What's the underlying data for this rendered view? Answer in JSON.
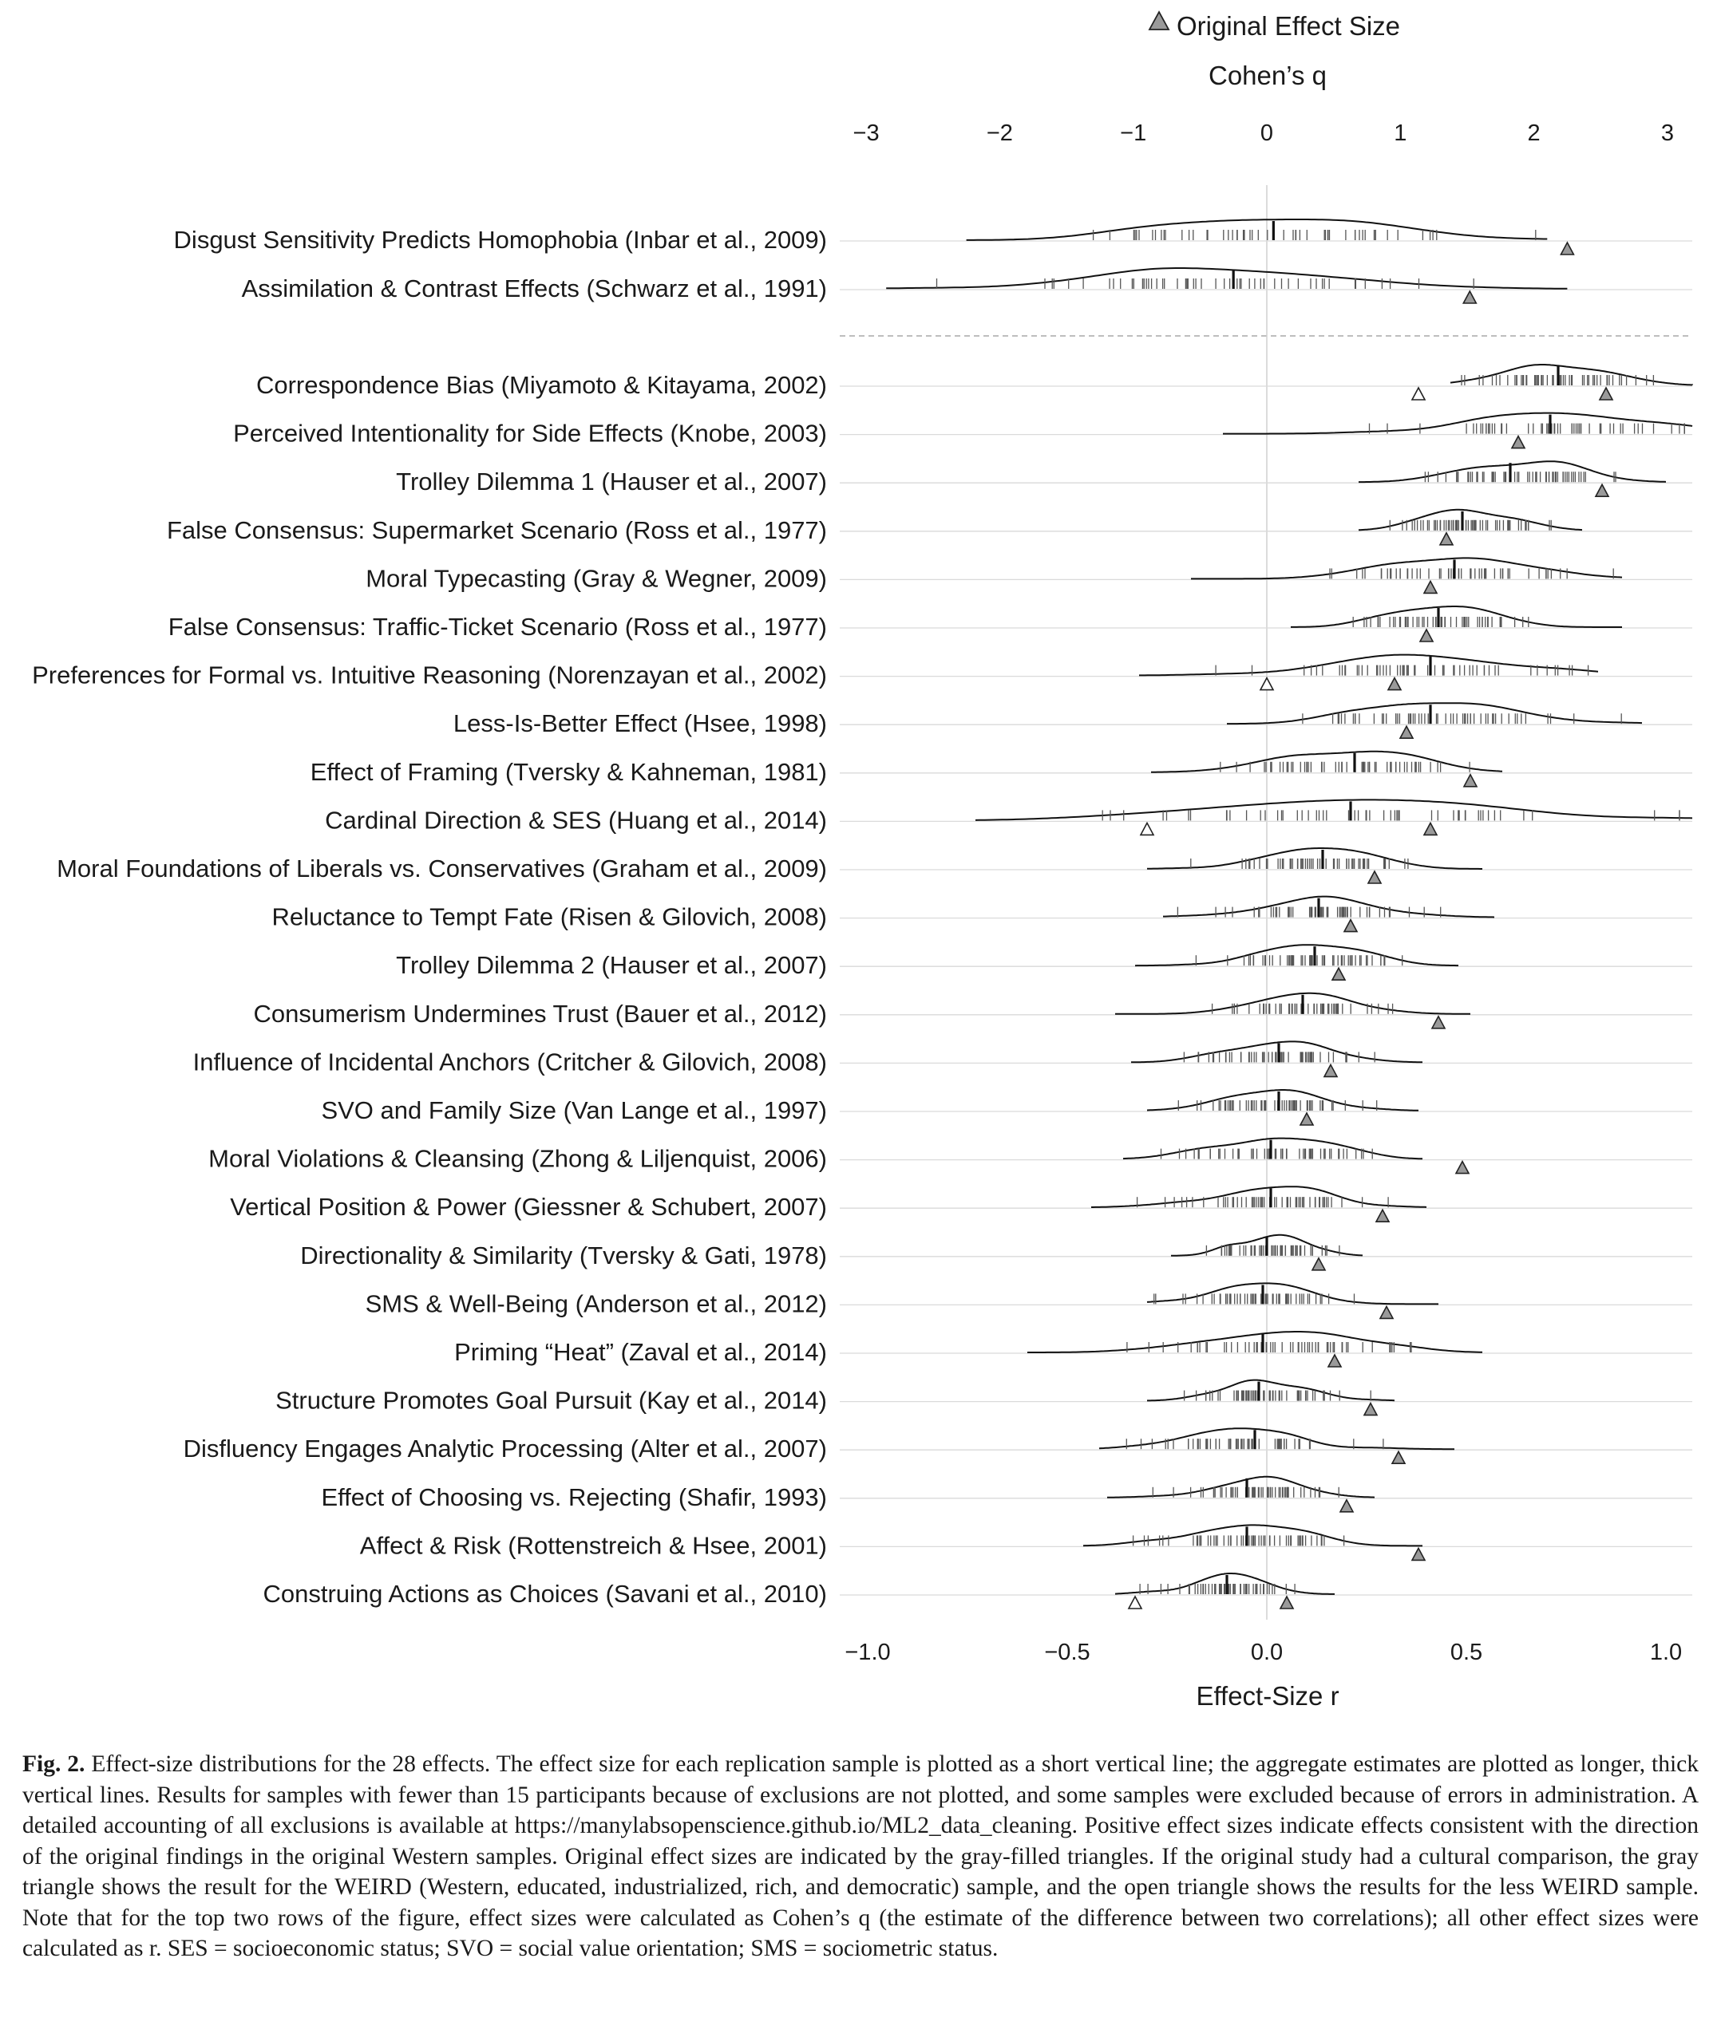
{
  "chart_data": {
    "type": "density-strip",
    "legend": {
      "label": "Original Effect Size",
      "placement": "top"
    },
    "top_axis": {
      "title": "Cohen’s q",
      "ticks": [
        "−3",
        "−2",
        "−1",
        "0",
        "1",
        "2",
        "3"
      ],
      "values": [
        -3,
        -2,
        -1,
        0,
        1,
        2,
        3
      ],
      "range": [
        -3.0,
        3.2
      ]
    },
    "bottom_axis": {
      "title": "Effect-Size r",
      "ticks": [
        "−1.0",
        "−0.5",
        "0.0",
        "0.5",
        "1.0"
      ],
      "values": [
        -1.0,
        -0.5,
        0.0,
        0.5,
        1.0
      ],
      "range": [
        -1.0,
        1.05
      ]
    },
    "effects": [
      {
        "label": "Disgust Sensitivity Predicts Homophobia (Inbar et al., 2009)",
        "scale": "q",
        "range": [
          -2.25,
          2.1
        ],
        "aggregate": 0.05,
        "spread": 0.75,
        "original": [
          {
            "value": 2.25,
            "weird": true
          }
        ]
      },
      {
        "label": "Assimilation & Contrast Effects (Schwarz et al., 1991)",
        "scale": "q",
        "range": [
          -2.85,
          2.25
        ],
        "aggregate": -0.25,
        "spread": 0.75,
        "original": [
          {
            "value": 1.52,
            "weird": true
          }
        ]
      },
      {
        "label": "Correspondence Bias (Miyamoto & Kitayama, 2002)",
        "scale": "r",
        "range": [
          0.46,
          1.07
        ],
        "aggregate": 0.73,
        "spread": 0.12,
        "original": [
          {
            "value": 0.85,
            "weird": true
          },
          {
            "value": 0.38,
            "weird": false
          }
        ]
      },
      {
        "label": "Perceived Intentionality for Side Effects (Knobe, 2003)",
        "scale": "r",
        "range": [
          -0.11,
          1.07
        ],
        "aggregate": 0.71,
        "spread": 0.2,
        "original": [
          {
            "value": 0.63,
            "weird": true
          }
        ]
      },
      {
        "label": "Trolley Dilemma 1 (Hauser et al., 2007)",
        "scale": "r",
        "range": [
          0.23,
          1.0
        ],
        "aggregate": 0.61,
        "spread": 0.13,
        "original": [
          {
            "value": 0.84,
            "weird": true
          }
        ]
      },
      {
        "label": "False Consensus: Supermarket Scenario (Ross et al., 1977)",
        "scale": "r",
        "range": [
          0.23,
          0.79
        ],
        "aggregate": 0.49,
        "spread": 0.1,
        "original": [
          {
            "value": 0.45,
            "weird": true
          }
        ]
      },
      {
        "label": "Moral Typecasting (Gray & Wegner, 2009)",
        "scale": "r",
        "range": [
          -0.19,
          0.89
        ],
        "aggregate": 0.47,
        "spread": 0.16,
        "original": [
          {
            "value": 0.41,
            "weird": true
          }
        ]
      },
      {
        "label": "False Consensus: Traffic-Ticket Scenario (Ross et al., 1977)",
        "scale": "r",
        "range": [
          0.06,
          0.89
        ],
        "aggregate": 0.43,
        "spread": 0.12,
        "original": [
          {
            "value": 0.4,
            "weird": true
          }
        ]
      },
      {
        "label": "Preferences for Formal vs. Intuitive Reasoning (Norenzayan et al., 2002)",
        "scale": "r",
        "range": [
          -0.32,
          0.83
        ],
        "aggregate": 0.41,
        "spread": 0.2,
        "original": [
          {
            "value": 0.32,
            "weird": true
          },
          {
            "value": 0.0,
            "weird": false
          }
        ]
      },
      {
        "label": "Less-Is-Better Effect (Hsee, 1998)",
        "scale": "r",
        "range": [
          -0.1,
          0.94
        ],
        "aggregate": 0.41,
        "spread": 0.15,
        "original": [
          {
            "value": 0.35,
            "weird": true
          }
        ]
      },
      {
        "label": "Effect of Framing (Tversky & Kahneman, 1981)",
        "scale": "r",
        "range": [
          -0.29,
          0.59
        ],
        "aggregate": 0.22,
        "spread": 0.15,
        "original": [
          {
            "value": 0.51,
            "weird": true
          }
        ]
      },
      {
        "label": "Cardinal Direction & SES (Huang et al., 2014)",
        "scale": "r",
        "range": [
          -0.73,
          1.07
        ],
        "aggregate": 0.21,
        "spread": 0.35,
        "original": [
          {
            "value": 0.41,
            "weird": true
          },
          {
            "value": -0.3,
            "weird": false
          }
        ]
      },
      {
        "label": "Moral Foundations of Liberals vs. Conservatives (Graham et al., 2009)",
        "scale": "r",
        "range": [
          -0.3,
          0.54
        ],
        "aggregate": 0.14,
        "spread": 0.13,
        "original": [
          {
            "value": 0.27,
            "weird": true
          }
        ]
      },
      {
        "label": "Reluctance to Tempt Fate (Risen & Gilovich, 2008)",
        "scale": "r",
        "range": [
          -0.26,
          0.57
        ],
        "aggregate": 0.13,
        "spread": 0.13,
        "original": [
          {
            "value": 0.21,
            "weird": true
          }
        ]
      },
      {
        "label": "Trolley Dilemma 2 (Hauser et al., 2007)",
        "scale": "r",
        "range": [
          -0.33,
          0.48
        ],
        "aggregate": 0.12,
        "spread": 0.12,
        "original": [
          {
            "value": 0.18,
            "weird": true
          }
        ]
      },
      {
        "label": "Consumerism Undermines Trust (Bauer et al., 2012)",
        "scale": "r",
        "range": [
          -0.38,
          0.51
        ],
        "aggregate": 0.09,
        "spread": 0.13,
        "original": [
          {
            "value": 0.43,
            "weird": true
          }
        ]
      },
      {
        "label": "Influence of Incidental Anchors (Critcher & Gilovich, 2008)",
        "scale": "r",
        "range": [
          -0.34,
          0.39
        ],
        "aggregate": 0.03,
        "spread": 0.11,
        "original": [
          {
            "value": 0.16,
            "weird": true
          }
        ]
      },
      {
        "label": "SVO and Family Size (Van Lange et al., 1997)",
        "scale": "r",
        "range": [
          -0.3,
          0.38
        ],
        "aggregate": 0.03,
        "spread": 0.11,
        "original": [
          {
            "value": 0.1,
            "weird": true
          }
        ]
      },
      {
        "label": "Moral Violations & Cleansing (Zhong & Liljenquist, 2006)",
        "scale": "r",
        "range": [
          -0.36,
          0.39
        ],
        "aggregate": 0.01,
        "spread": 0.12,
        "original": [
          {
            "value": 0.49,
            "weird": true
          }
        ]
      },
      {
        "label": "Vertical Position & Power (Giessner & Schubert, 2007)",
        "scale": "r",
        "range": [
          -0.44,
          0.4
        ],
        "aggregate": 0.01,
        "spread": 0.12,
        "original": [
          {
            "value": 0.29,
            "weird": true
          }
        ]
      },
      {
        "label": "Directionality & Similarity (Tversky & Gati, 1978)",
        "scale": "r",
        "range": [
          -0.24,
          0.24
        ],
        "aggregate": 0.0,
        "spread": 0.07,
        "original": [
          {
            "value": 0.13,
            "weird": true
          }
        ]
      },
      {
        "label": "SMS & Well-Being (Anderson et al., 2012)",
        "scale": "r",
        "range": [
          -0.3,
          0.43
        ],
        "aggregate": -0.01,
        "spread": 0.1,
        "original": [
          {
            "value": 0.3,
            "weird": true
          }
        ]
      },
      {
        "label": "Priming “Heat” (Zaval et al., 2014)",
        "scale": "r",
        "range": [
          -0.6,
          0.54
        ],
        "aggregate": -0.01,
        "spread": 0.16,
        "original": [
          {
            "value": 0.17,
            "weird": true
          }
        ]
      },
      {
        "label": "Structure Promotes Goal Pursuit (Kay et al., 2014)",
        "scale": "r",
        "range": [
          -0.3,
          0.32
        ],
        "aggregate": -0.02,
        "spread": 0.09,
        "original": [
          {
            "value": 0.26,
            "weird": true
          }
        ]
      },
      {
        "label": "Disfluency Engages Analytic Processing (Alter et al., 2007)",
        "scale": "r",
        "range": [
          -0.42,
          0.47
        ],
        "aggregate": -0.03,
        "spread": 0.12,
        "original": [
          {
            "value": 0.33,
            "weird": true
          }
        ]
      },
      {
        "label": "Effect of Choosing vs. Rejecting (Shafir, 1993)",
        "scale": "r",
        "range": [
          -0.4,
          0.27
        ],
        "aggregate": -0.05,
        "spread": 0.1,
        "original": [
          {
            "value": 0.2,
            "weird": true
          }
        ]
      },
      {
        "label": "Affect & Risk (Rottenstreich & Hsee, 2001)",
        "scale": "r",
        "range": [
          -0.46,
          0.39
        ],
        "aggregate": -0.05,
        "spread": 0.12,
        "original": [
          {
            "value": 0.38,
            "weird": true
          }
        ]
      },
      {
        "label": "Construing Actions as Choices (Savani et al., 2010)",
        "scale": "r",
        "range": [
          -0.38,
          0.17
        ],
        "aggregate": -0.1,
        "spread": 0.08,
        "original": [
          {
            "value": 0.05,
            "weird": true
          },
          {
            "value": -0.33,
            "weird": false
          }
        ]
      }
    ]
  },
  "caption": {
    "label": "Fig. 2.",
    "text": "Effect-size distributions for the 28 effects. The effect size for each replication sample is plotted as a short vertical line; the aggregate estimates are plotted as longer, thick vertical lines. Results for samples with fewer than 15 participants because of exclusions are not plotted, and some samples were excluded because of errors in administration. A detailed accounting of all exclusions is available at https://manylabsopenscience.github.io/ML2_data_cleaning. Positive effect sizes indicate effects consistent with the direction of the original findings in the original Western samples. Original effect sizes are indicated by the gray-filled triangles. If the original study had a cultural comparison, the gray triangle shows the result for the WEIRD (Western, educated, industrialized, rich, and democratic) sample, and the open triangle shows the results for the less WEIRD sample. Note that for the top two rows of the figure, effect sizes were calculated as Cohen’s q (the estimate of the difference between two correlations); all other effect sizes were calculated as r. SES = socioeconomic status; SVO = social value orientation; SMS = sociometric status."
  }
}
